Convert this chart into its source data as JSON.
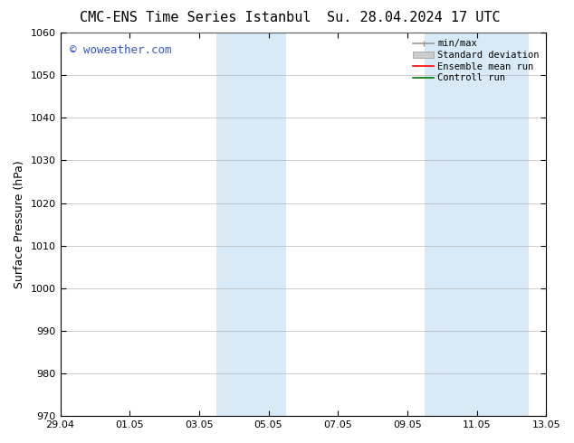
{
  "title_left": "CMC-ENS Time Series Istanbul",
  "title_right": "Su. 28.04.2024 17 UTC",
  "ylabel": "Surface Pressure (hPa)",
  "ylim": [
    970,
    1060
  ],
  "yticks": [
    970,
    980,
    990,
    1000,
    1010,
    1020,
    1030,
    1040,
    1050,
    1060
  ],
  "xlim_start": 0,
  "xlim_end": 14,
  "xtick_labels": [
    "29.04",
    "01.05",
    "03.05",
    "05.05",
    "07.05",
    "09.05",
    "11.05",
    "13.05"
  ],
  "xtick_positions": [
    0,
    2,
    4,
    6,
    8,
    10,
    12,
    14
  ],
  "shaded_regions": [
    {
      "xmin": 4.5,
      "xmax": 6.5,
      "color": "#d8eaf8"
    },
    {
      "xmin": 10.5,
      "xmax": 13.5,
      "color": "#d8eaf8"
    }
  ],
  "watermark": "© woweather.com",
  "watermark_color": "#3355cc",
  "background_color": "#ffffff",
  "plot_bg_color": "#ffffff",
  "grid_color": "#aaaaaa",
  "legend_items": [
    {
      "label": "min/max",
      "color": "#999999",
      "lw": 1.2
    },
    {
      "label": "Standard deviation",
      "color": "#cccccc",
      "lw": 7
    },
    {
      "label": "Ensemble mean run",
      "color": "#ff0000",
      "lw": 1.2
    },
    {
      "label": "Controll run",
      "color": "#007700",
      "lw": 1.2
    }
  ],
  "title_fontsize": 11,
  "ylabel_fontsize": 9,
  "tick_fontsize": 8,
  "legend_fontsize": 7.5,
  "watermark_fontsize": 9
}
